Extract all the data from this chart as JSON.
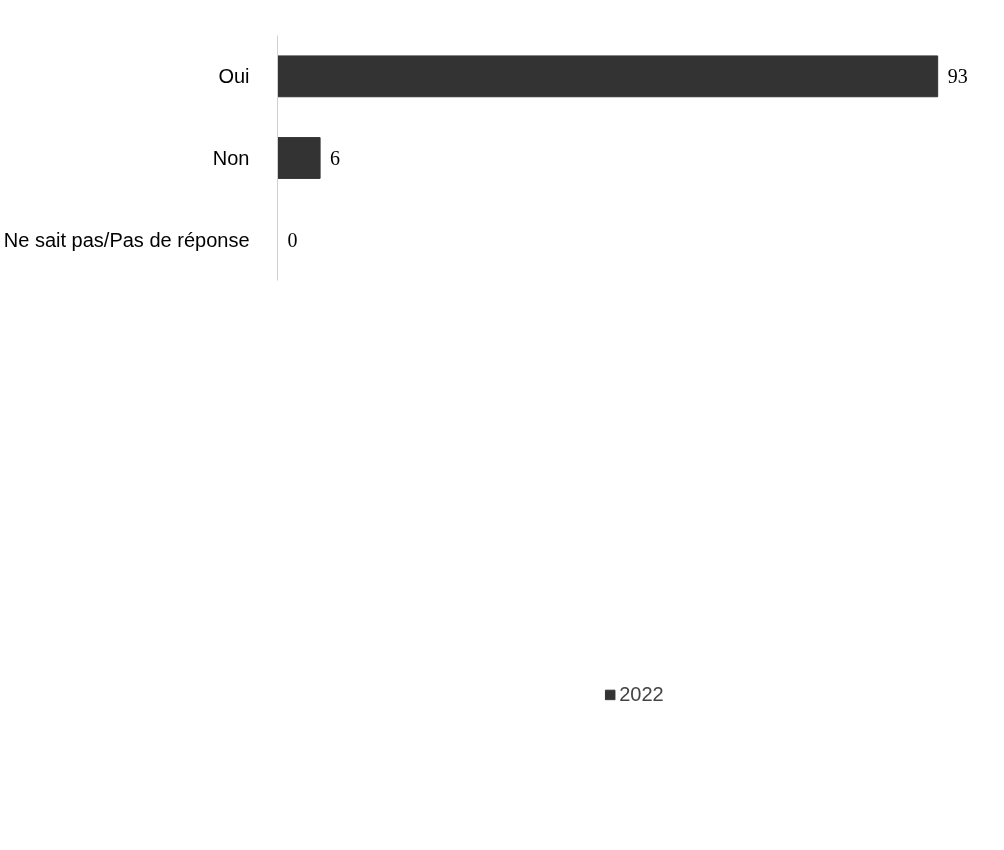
{
  "chart_data": {
    "type": "bar",
    "orientation": "horizontal",
    "categories": [
      "Oui",
      "Non",
      "Ne sait pas/Pas de réponse"
    ],
    "series": [
      {
        "name": "2022",
        "color": "#333333",
        "values": [
          93,
          6,
          0
        ]
      }
    ],
    "data_labels": true,
    "grid": false,
    "legend": "bottom"
  }
}
